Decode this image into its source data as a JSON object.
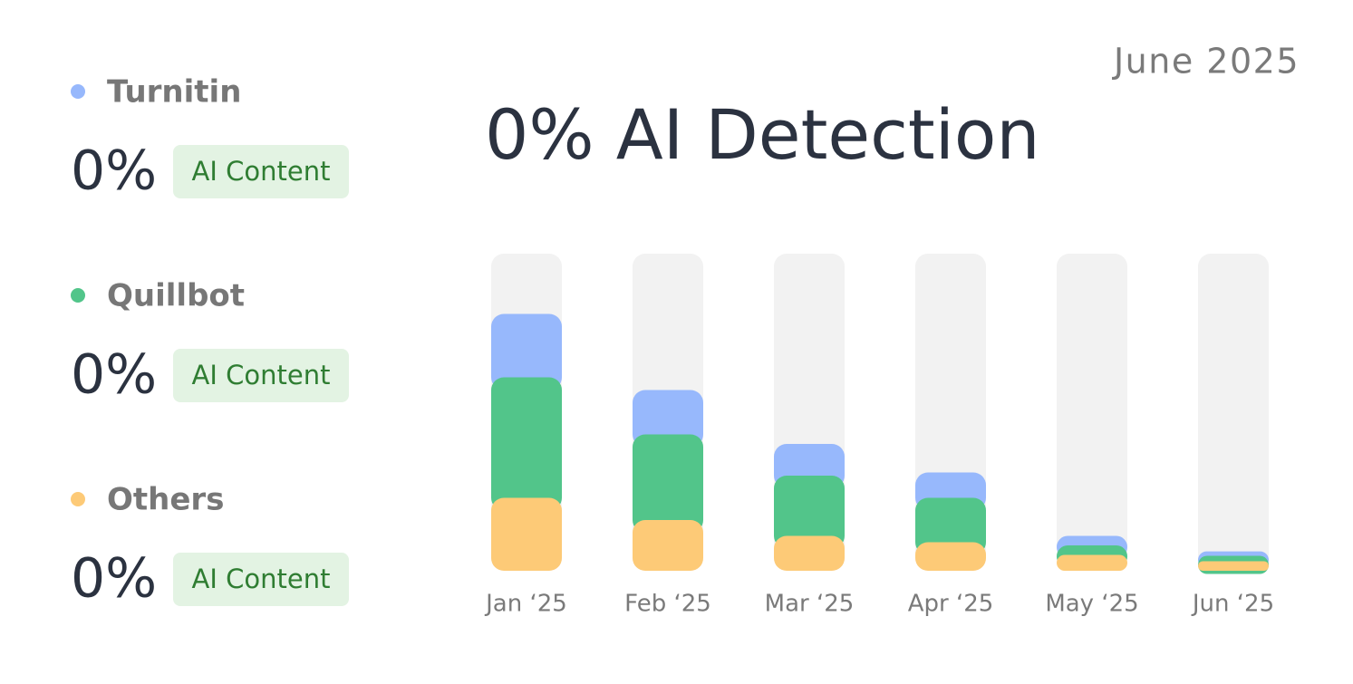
{
  "chart_data": {
    "type": "stacked_bar",
    "title": "0% AI Detection",
    "subtitle": "June 2025",
    "categories": [
      "Jan ‘25",
      "Feb ‘25",
      "Mar ‘25",
      "Apr ‘25",
      "May ‘25",
      "Jun ‘25"
    ],
    "series": [
      {
        "name": "Turnitin",
        "color": "#97b8fc",
        "values": [
          20,
          14,
          10,
          8,
          3,
          1.4
        ]
      },
      {
        "name": "Quillbot",
        "color": "#52c58a",
        "values": [
          38,
          27,
          19,
          14,
          3,
          1.7
        ]
      },
      {
        "name": "Others",
        "color": "#fdca77",
        "values": [
          23,
          16,
          11,
          9,
          5,
          3
        ]
      }
    ],
    "ylim": [
      0,
      100
    ],
    "summary": [
      {
        "value": 0,
        "value_label": "0%",
        "badge": "AI Content"
      },
      {
        "value": 0,
        "value_label": "0%",
        "badge": "AI Content"
      },
      {
        "value": 0,
        "value_label": "0%",
        "badge": "AI Content"
      }
    ]
  }
}
